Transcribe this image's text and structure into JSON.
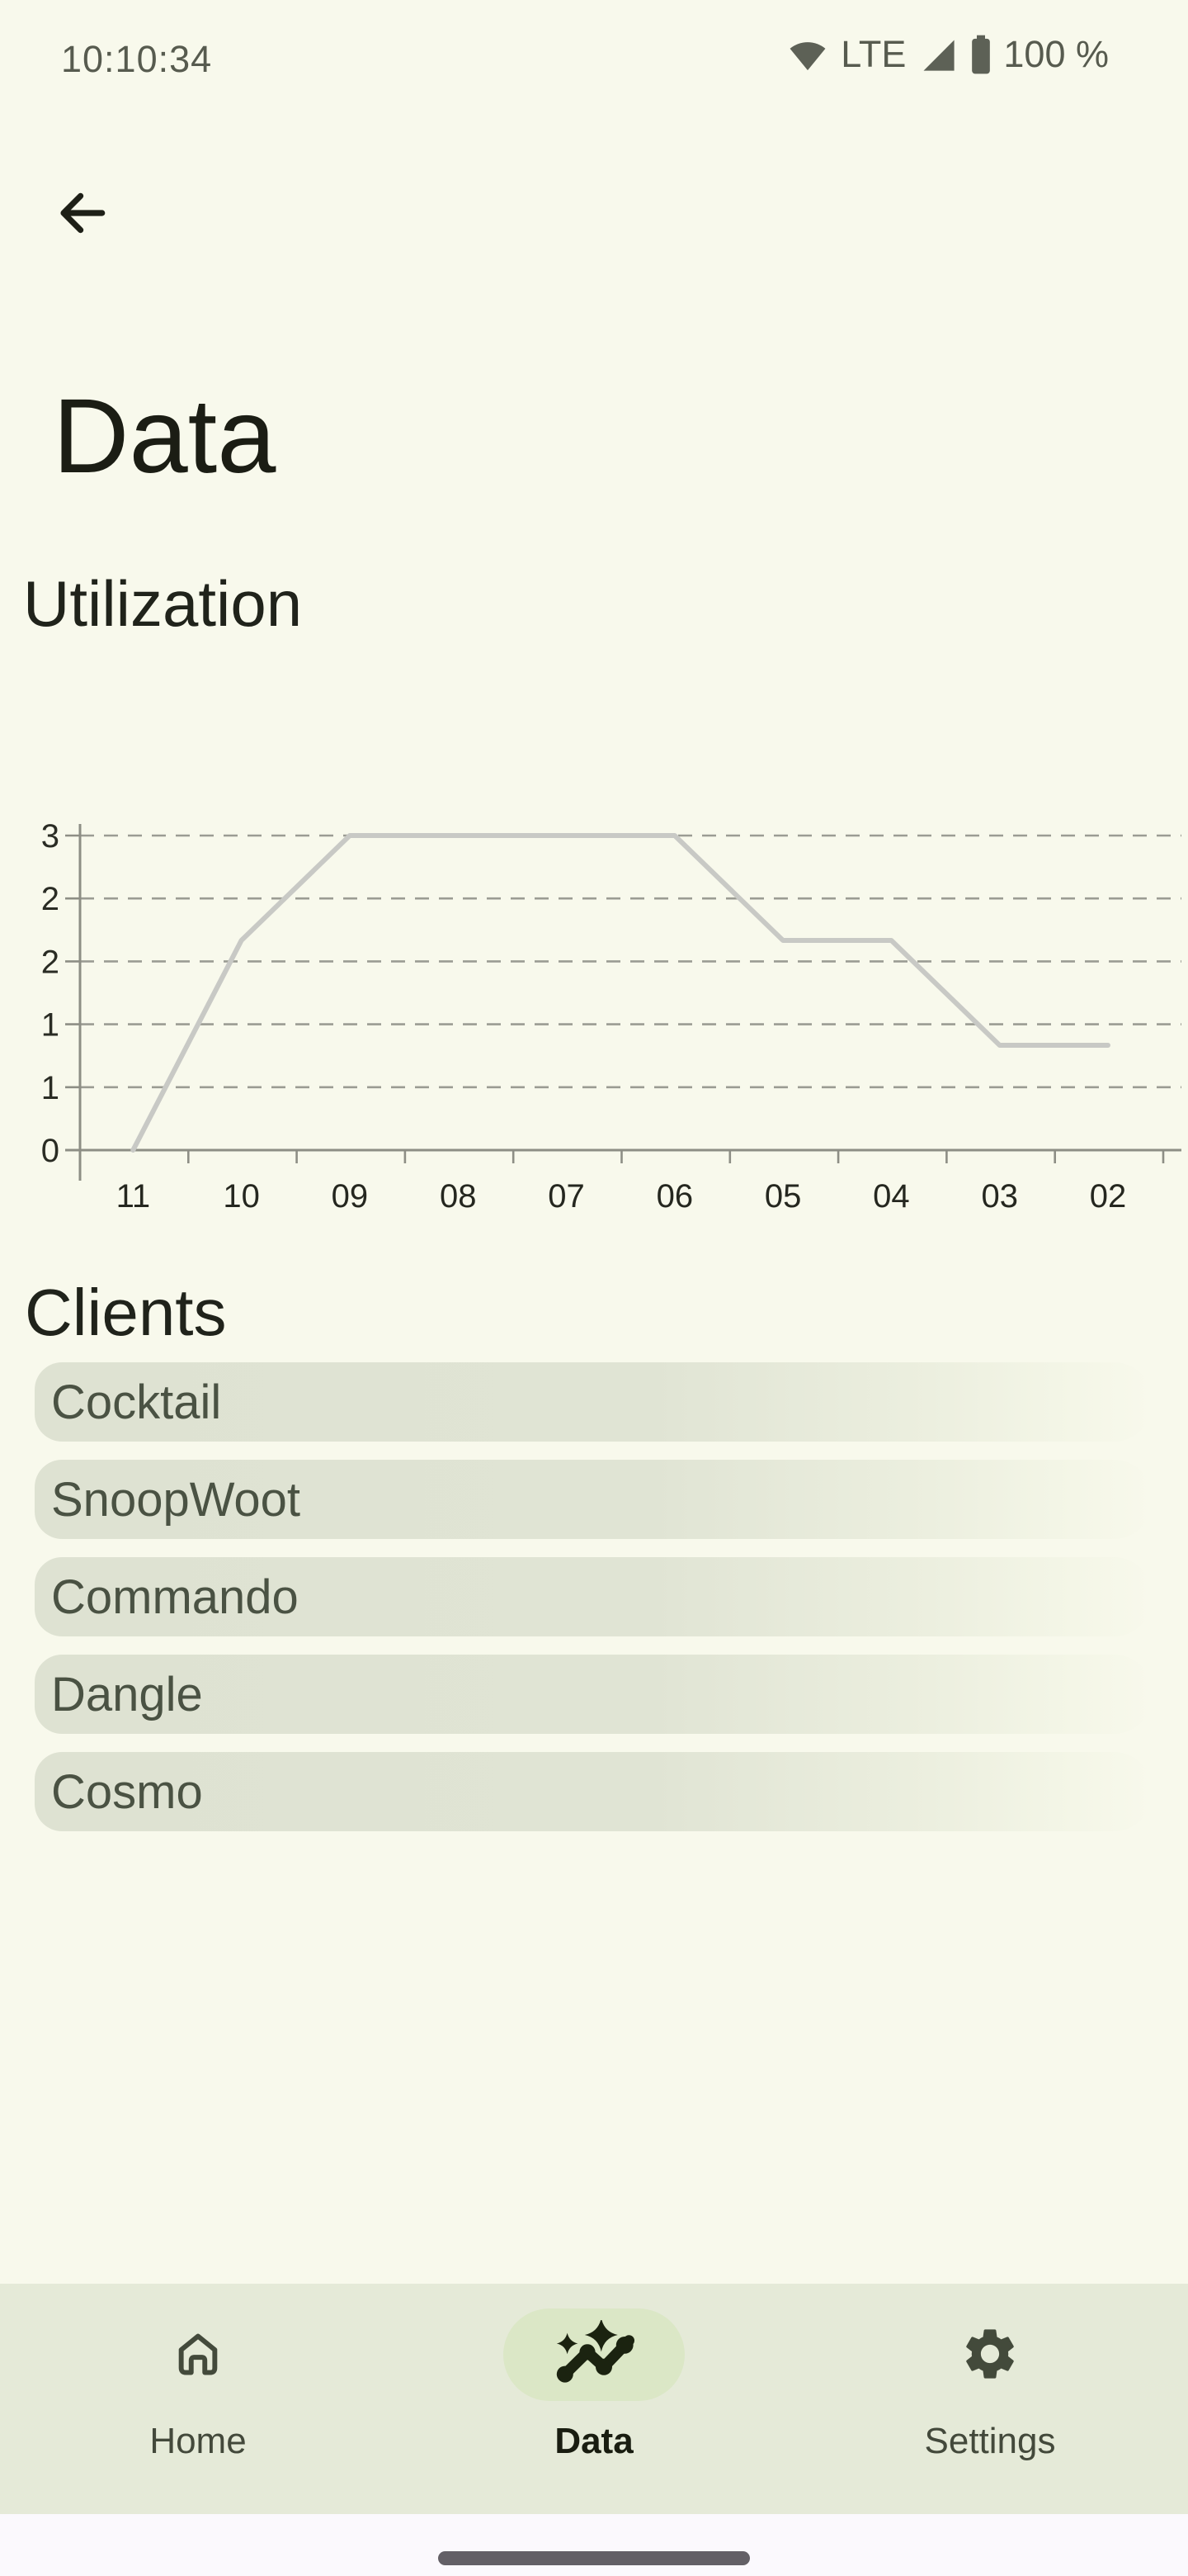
{
  "status_bar": {
    "time": "10:10:34",
    "network_type": "LTE",
    "battery_percent": "100 %",
    "icons": [
      "wifi-icon",
      "cellular-signal-icon",
      "battery-icon"
    ]
  },
  "header": {
    "title": "Data",
    "back_icon": "arrow-left-icon"
  },
  "chart_section": {
    "title": "Utilization",
    "chart_data": {
      "type": "line",
      "title": "Utilization",
      "x": [
        "11",
        "10",
        "09",
        "08",
        "07",
        "06",
        "05",
        "04",
        "03",
        "02"
      ],
      "values": [
        0,
        2,
        3,
        3,
        3,
        3,
        2,
        2,
        1,
        1
      ],
      "xlabel": "",
      "ylabel": "",
      "ylim": [
        0,
        3
      ],
      "y_tick_values": [
        3,
        2.4,
        1.8,
        1.2,
        0.6,
        0
      ],
      "y_tick_labels": [
        "3",
        "2",
        "2",
        "1",
        "1",
        "0"
      ],
      "grid": "horizontal-dashed",
      "legend": "none",
      "line_color": "#C8C9C5",
      "grid_color": "#9B9C93",
      "axis_color": "#8D8E85"
    }
  },
  "clients_section": {
    "title": "Clients",
    "items": [
      "Cocktail",
      "SnoopWoot",
      "Commando",
      "Dangle",
      "Cosmo"
    ]
  },
  "bottom_nav": {
    "items": [
      {
        "label": "Home",
        "icon": "home-icon",
        "active": false
      },
      {
        "label": "Data",
        "icon": "auto-graph-icon",
        "active": true
      },
      {
        "label": "Settings",
        "icon": "gear-icon",
        "active": false
      }
    ]
  },
  "colors": {
    "background": "#F8F9EC",
    "nav_background": "#E5EAD8",
    "active_pill": "#DBE7C6",
    "client_pill": "#DEE2D2",
    "gesture_bar_background": "#FBF9FD",
    "gesture_handle": "#636066",
    "title_text": "#1B1D14",
    "status_text": "#575B4F"
  }
}
